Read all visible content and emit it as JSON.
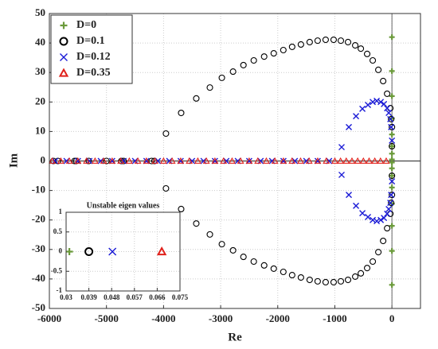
{
  "chart_data": [
    {
      "type": "scatter",
      "xlabel": "Re",
      "ylabel": "Im",
      "xlim": [
        -6000,
        500
      ],
      "xticks": [
        -6000,
        -5000,
        -4000,
        -3000,
        -2000,
        -1000,
        0
      ],
      "ylim": [
        -50,
        50
      ],
      "yticks": [
        -50,
        -40,
        -30,
        -20,
        -10,
        0,
        10,
        20,
        30,
        40,
        50
      ],
      "grid": true,
      "legend": "upper left",
      "series": [
        {
          "name": "D=0",
          "color": "#6a9a3a",
          "marker": "plus",
          "x": [
            0,
            0,
            0,
            0,
            0,
            0,
            0,
            0,
            0,
            0,
            0,
            0,
            0,
            0,
            0,
            0
          ],
          "y": [
            42,
            30.5,
            22,
            14.5,
            9,
            5,
            2.5,
            0.5,
            -0.5,
            -2.5,
            -5,
            -9,
            -14.5,
            -22,
            -30.5,
            -42
          ]
        },
        {
          "name": "D=0.1",
          "color": "#000000",
          "marker": "circle",
          "x": [
            -3958,
            -3692,
            -3427,
            -3189,
            -2979,
            -2783,
            -2601,
            -2420,
            -2238,
            -2070,
            -1902,
            -1748,
            -1594,
            -1441,
            -1301,
            -1161,
            -1021,
            -895,
            -769,
            -643,
            -545,
            -434,
            -336,
            -238,
            -154,
            -84,
            -28,
            -14,
            0,
            0,
            -3958,
            -3692,
            -3427,
            -3189,
            -2979,
            -2783,
            -2601,
            -2420,
            -2238,
            -2070,
            -1902,
            -1748,
            -1594,
            -1441,
            -1301,
            -1161,
            -1021,
            -895,
            -769,
            -643,
            -545,
            -434,
            -336,
            -238,
            -154,
            -84,
            -28,
            -14,
            0,
            0,
            -5930,
            -5850,
            -5560,
            -5530,
            -5310,
            -5000,
            -4740,
            -4700,
            -4210,
            -4160
          ],
          "y": [
            9.3,
            16.3,
            21.2,
            24.9,
            28.2,
            30.3,
            32.5,
            34.1,
            35.4,
            36.5,
            37.6,
            38.7,
            39.5,
            40.3,
            40.8,
            41.1,
            41.1,
            40.8,
            40.3,
            39.2,
            38.1,
            36.3,
            34.1,
            30.9,
            27.1,
            22.8,
            17.9,
            14.2,
            11.5,
            5,
            -9.3,
            -16.3,
            -21.2,
            -24.9,
            -28.2,
            -30.3,
            -32.5,
            -34.1,
            -35.4,
            -36.5,
            -37.6,
            -38.7,
            -39.5,
            -40.3,
            -40.8,
            -41.1,
            -41.1,
            -40.8,
            -40.3,
            -39.2,
            -38.1,
            -36.3,
            -34.1,
            -30.9,
            -27.1,
            -22.8,
            -17.9,
            -14.2,
            -11.5,
            -5,
            0,
            0,
            0,
            0,
            0,
            0,
            0,
            0,
            0,
            0
          ]
        },
        {
          "name": "D=0.12",
          "color": "#1a1ad6",
          "marker": "x",
          "x": [
            -881,
            -755,
            -629,
            -517,
            -420,
            -336,
            -266,
            -196,
            -140,
            -84,
            -56,
            -28,
            -14,
            0,
            -881,
            -755,
            -629,
            -517,
            -420,
            -336,
            -266,
            -196,
            -140,
            -84,
            -56,
            -28,
            -14,
            0,
            -5900,
            -5700,
            -5500,
            -5300,
            -5100,
            -4900,
            -4700,
            -4500,
            -4300,
            -4100,
            -3900,
            -3700,
            -3500,
            -3300,
            -3100,
            -2900,
            -2700,
            -2500,
            -2300,
            -2100,
            -1900,
            -1700,
            -1500,
            -1300,
            -1100
          ],
          "y": [
            4.7,
            11.5,
            15.2,
            17.7,
            19,
            20,
            20.4,
            20,
            19.3,
            17.9,
            16.3,
            14.2,
            11.5,
            6.9,
            -4.7,
            -11.5,
            -15.2,
            -17.7,
            -19,
            -20,
            -20.4,
            -20,
            -19.3,
            -17.9,
            -16.3,
            -14.2,
            -11.5,
            -6.9,
            0,
            0,
            0,
            0,
            0,
            0,
            0,
            0,
            0,
            0,
            0,
            0,
            0,
            0,
            0,
            0,
            0,
            0,
            0,
            0,
            0,
            0,
            0,
            0,
            0
          ]
        },
        {
          "name": "D=0.35",
          "color": "#e0201a",
          "marker": "triangle",
          "x": [
            -5950,
            -5800,
            -5650,
            -5500,
            -5350,
            -5200,
            -5050,
            -4900,
            -4750,
            -4600,
            -4450,
            -4300,
            -4150,
            -4000,
            -3850,
            -3700,
            -3550,
            -3400,
            -3250,
            -3100,
            -2950,
            -2800,
            -2650,
            -2500,
            -2350,
            -2200,
            -2050,
            -1900,
            -1750,
            -1600,
            -1450,
            -1300,
            -1150,
            -1000,
            -900,
            -800,
            -700,
            -600,
            -500,
            -400,
            -300,
            -200,
            -100
          ],
          "y": [
            0,
            0,
            0,
            0,
            0,
            0,
            0,
            0,
            0,
            0,
            0,
            0,
            0,
            0,
            0,
            0,
            0,
            0,
            0,
            0,
            0,
            0,
            0,
            0,
            0,
            0,
            0,
            0,
            0,
            0,
            0,
            0,
            0,
            0,
            0,
            0,
            0,
            0,
            0,
            0,
            0,
            0,
            0
          ]
        }
      ]
    },
    {
      "type": "scatter",
      "title": "Unstable eigen values",
      "xlim": [
        0.03,
        0.075
      ],
      "xticks": [
        0.03,
        0.039,
        0.048,
        0.057,
        0.066,
        0.075
      ],
      "ylim": [
        -1,
        1
      ],
      "yticks": [
        -1,
        -0.5,
        0,
        0.5,
        1
      ],
      "grid": true,
      "series": [
        {
          "color": "#6a9a3a",
          "marker": "plus",
          "x": [
            0.0313
          ],
          "y": [
            0
          ]
        },
        {
          "color": "#000000",
          "marker": "circle",
          "x": [
            0.039
          ],
          "y": [
            0
          ]
        },
        {
          "color": "#1a1ad6",
          "marker": "x",
          "x": [
            0.0483
          ],
          "y": [
            0
          ]
        },
        {
          "color": "#e0201a",
          "marker": "triangle",
          "x": [
            0.0678
          ],
          "y": [
            0
          ]
        }
      ]
    }
  ]
}
